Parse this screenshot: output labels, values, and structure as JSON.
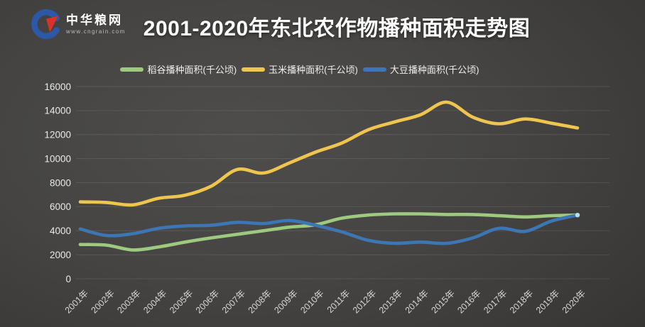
{
  "brand": {
    "name": "中华粮网",
    "url": "www.cngrain.com",
    "logo_blue": "#2b59a8",
    "logo_red": "#d8322a"
  },
  "title": "2001-2020年东北农作物播种面积走势图",
  "colors": {
    "background_dark": "#2a2a28",
    "background_light": "#4e4d4b",
    "gridline": "rgba(255,255,255,0.10)",
    "axis_text": "#d6d6d4",
    "title_text": "#ffffff",
    "endpoint_dot": "#b9e0ef"
  },
  "chart_data": {
    "type": "line",
    "title": "2001-2020年东北农作物播种面积走势图",
    "xlabel": "",
    "ylabel": "",
    "unit": "千公顷",
    "grid": true,
    "legend_position": "top",
    "ylim": [
      0,
      16000
    ],
    "ytick_step": 2000,
    "yticks": [
      0,
      2000,
      4000,
      6000,
      8000,
      10000,
      12000,
      14000,
      16000
    ],
    "x": [
      "2001年",
      "2002年",
      "2003年",
      "2004年",
      "2005年",
      "2006年",
      "2007年",
      "2008年",
      "2009年",
      "2010年",
      "2011年",
      "2012年",
      "2013年",
      "2014年",
      "2015年",
      "2016年",
      "2017年",
      "2018年",
      "2019年",
      "2020年"
    ],
    "series": [
      {
        "key": "rice",
        "name": "稻谷播种面积(千公顷)",
        "color": "#9dca7e",
        "values": [
          2850,
          2800,
          2400,
          2650,
          3050,
          3400,
          3700,
          4000,
          4300,
          4500,
          5050,
          5300,
          5400,
          5400,
          5350,
          5350,
          5250,
          5150,
          5250,
          5300
        ]
      },
      {
        "key": "corn",
        "name": "玉米播种面积(千公顷)",
        "color": "#eec54f",
        "values": [
          6400,
          6350,
          6150,
          6700,
          6950,
          7700,
          9100,
          8800,
          9650,
          10550,
          11300,
          12400,
          13050,
          13650,
          14700,
          13450,
          12900,
          13300,
          12950,
          12550
        ]
      },
      {
        "key": "soybean",
        "name": "大豆播种面积(千公顷)",
        "color": "#3d76b4",
        "end_dot": true,
        "values": [
          4150,
          3600,
          3750,
          4200,
          4400,
          4450,
          4700,
          4600,
          4850,
          4450,
          3900,
          3200,
          2950,
          3050,
          2950,
          3400,
          4200,
          3950,
          4800,
          5300
        ]
      }
    ]
  }
}
